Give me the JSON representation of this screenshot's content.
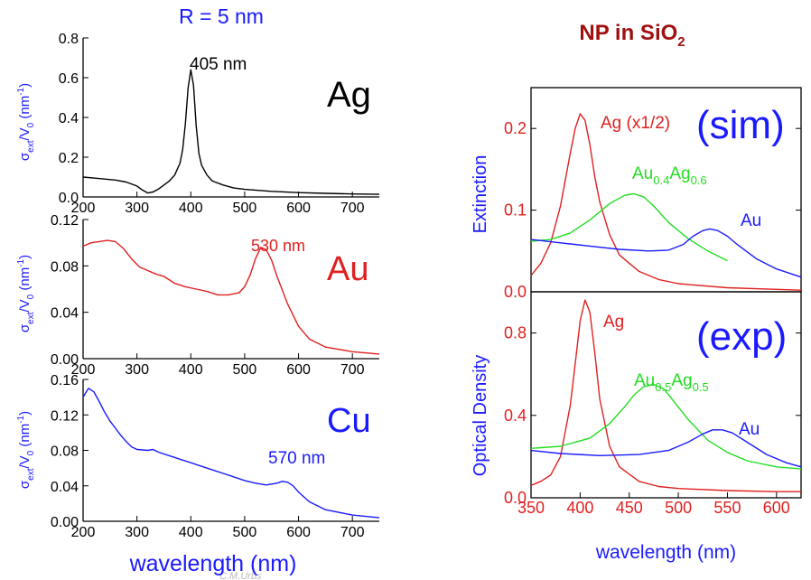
{
  "left_title": "R = 5 nm",
  "right_title": "NP in SiO",
  "right_title_sub": "2",
  "watermark": "C.M.Urbs",
  "colors": {
    "blue": "#1a1aff",
    "red": "#e02020",
    "green": "#22dd22",
    "darkred": "#a01010",
    "black": "#000000"
  },
  "chart_data": [
    {
      "type": "line",
      "id": "ag",
      "element": "Ag",
      "peak_label": "405 nm",
      "ylabel": "σext/V0 (nm-1)",
      "xlabel": "",
      "xlim": [
        200,
        750
      ],
      "ylim": [
        0,
        0.8
      ],
      "xticks": [
        "200",
        "300",
        "400",
        "500",
        "600",
        "700"
      ],
      "yticks": [
        "0.0",
        "0.2",
        "0.4",
        "0.6",
        "0.8"
      ],
      "color": "#000000",
      "series": [
        {
          "x": [
            200,
            220,
            240,
            260,
            280,
            300,
            310,
            320,
            330,
            340,
            350,
            360,
            370,
            380,
            385,
            390,
            395,
            400,
            405,
            410,
            415,
            420,
            430,
            440,
            460,
            480,
            500,
            550,
            600,
            650,
            700,
            750
          ],
          "y": [
            0.1,
            0.095,
            0.09,
            0.085,
            0.075,
            0.055,
            0.035,
            0.02,
            0.025,
            0.04,
            0.06,
            0.08,
            0.11,
            0.17,
            0.24,
            0.37,
            0.55,
            0.64,
            0.56,
            0.36,
            0.22,
            0.16,
            0.11,
            0.08,
            0.06,
            0.045,
            0.038,
            0.028,
            0.022,
            0.018,
            0.015,
            0.013
          ]
        }
      ]
    },
    {
      "type": "line",
      "id": "au",
      "element": "Au",
      "peak_label": "530 nm",
      "ylabel": "σext/V0 (nm-1)",
      "xlabel": "",
      "xlim": [
        200,
        750
      ],
      "ylim": [
        0,
        0.12
      ],
      "xticks": [
        "200",
        "300",
        "400",
        "500",
        "600",
        "700"
      ],
      "yticks": [
        "0.00",
        "0.04",
        "0.08",
        "0.12"
      ],
      "color": "#e02020",
      "series": [
        {
          "x": [
            200,
            215,
            230,
            245,
            260,
            275,
            290,
            305,
            320,
            335,
            350,
            370,
            390,
            410,
            430,
            450,
            470,
            490,
            500,
            510,
            520,
            530,
            540,
            550,
            560,
            580,
            600,
            620,
            650,
            700,
            750
          ],
          "y": [
            0.097,
            0.1,
            0.101,
            0.102,
            0.101,
            0.095,
            0.086,
            0.079,
            0.076,
            0.073,
            0.071,
            0.065,
            0.062,
            0.06,
            0.058,
            0.055,
            0.055,
            0.057,
            0.062,
            0.072,
            0.086,
            0.096,
            0.094,
            0.085,
            0.071,
            0.047,
            0.028,
            0.017,
            0.01,
            0.006,
            0.004
          ]
        }
      ]
    },
    {
      "type": "line",
      "id": "cu",
      "element": "Cu",
      "peak_label": "570 nm",
      "ylabel": "σext/V0 (nm-1)",
      "xlabel": "wavelength (nm)",
      "xlim": [
        200,
        750
      ],
      "ylim": [
        0,
        0.16
      ],
      "xticks": [
        "200",
        "300",
        "400",
        "500",
        "600",
        "700"
      ],
      "yticks": [
        "0.00",
        "0.04",
        "0.08",
        "0.12",
        "0.16"
      ],
      "color": "#1a1aff",
      "series": [
        {
          "x": [
            200,
            210,
            220,
            230,
            240,
            250,
            260,
            270,
            280,
            290,
            300,
            320,
            330,
            340,
            360,
            380,
            400,
            420,
            440,
            460,
            480,
            500,
            520,
            540,
            560,
            570,
            580,
            590,
            600,
            620,
            650,
            700,
            750
          ],
          "y": [
            0.14,
            0.15,
            0.146,
            0.135,
            0.123,
            0.113,
            0.105,
            0.097,
            0.09,
            0.084,
            0.081,
            0.08,
            0.081,
            0.078,
            0.074,
            0.07,
            0.066,
            0.062,
            0.058,
            0.054,
            0.05,
            0.046,
            0.043,
            0.041,
            0.043,
            0.045,
            0.044,
            0.04,
            0.033,
            0.022,
            0.013,
            0.007,
            0.004
          ]
        }
      ]
    },
    {
      "type": "line",
      "id": "sim",
      "panel_label": "(sim)",
      "ylabel": "Extinction",
      "xlabel": "",
      "xlim": [
        350,
        625
      ],
      "ylim": [
        0,
        0.25
      ],
      "xticks": [],
      "yticks": [
        "0.0",
        "0.1",
        "0.2"
      ],
      "series": [
        {
          "name": "Ag (x1/2)",
          "color": "#e02020",
          "x": [
            350,
            360,
            370,
            380,
            390,
            395,
            400,
            405,
            410,
            415,
            420,
            430,
            440,
            460,
            480,
            500,
            550,
            600,
            625
          ],
          "y": [
            0.02,
            0.035,
            0.06,
            0.105,
            0.17,
            0.2,
            0.218,
            0.21,
            0.18,
            0.14,
            0.11,
            0.07,
            0.045,
            0.025,
            0.015,
            0.01,
            0.005,
            0.003,
            0.002
          ]
        },
        {
          "name": "Au0.4Ag0.6",
          "label_main": "Au",
          "label_sub1": "0.4",
          "label_mid": "Ag",
          "label_sub2": "0.6",
          "color": "#22dd22",
          "x": [
            350,
            370,
            390,
            410,
            430,
            445,
            455,
            465,
            475,
            490,
            510,
            530,
            550
          ],
          "y": [
            0.062,
            0.064,
            0.072,
            0.088,
            0.108,
            0.118,
            0.12,
            0.116,
            0.105,
            0.085,
            0.065,
            0.05,
            0.038
          ]
        },
        {
          "name": "Au",
          "color": "#1a1aff",
          "x": [
            350,
            380,
            410,
            440,
            470,
            490,
            505,
            515,
            525,
            532,
            540,
            550,
            560,
            580,
            600,
            625
          ],
          "y": [
            0.064,
            0.06,
            0.056,
            0.052,
            0.05,
            0.051,
            0.058,
            0.068,
            0.075,
            0.077,
            0.075,
            0.068,
            0.058,
            0.04,
            0.028,
            0.018
          ]
        }
      ]
    },
    {
      "type": "line",
      "id": "exp",
      "panel_label": "(exp)",
      "ylabel": "Optical Density",
      "xlabel": "wavelength (nm)",
      "xlim": [
        350,
        625
      ],
      "ylim": [
        0,
        1.0
      ],
      "xticks": [
        "350",
        "400",
        "450",
        "500",
        "550",
        "600"
      ],
      "yticks": [
        "0.0",
        "0.4",
        "0.8"
      ],
      "series": [
        {
          "name": "Ag",
          "color": "#e02020",
          "x": [
            350,
            360,
            370,
            380,
            390,
            395,
            400,
            405,
            410,
            415,
            420,
            430,
            440,
            460,
            480,
            500,
            550,
            600,
            625
          ],
          "y": [
            0.06,
            0.08,
            0.11,
            0.2,
            0.45,
            0.65,
            0.86,
            0.96,
            0.9,
            0.7,
            0.48,
            0.25,
            0.15,
            0.08,
            0.055,
            0.045,
            0.035,
            0.03,
            0.03
          ]
        },
        {
          "name": "Au0.5Ag0.5",
          "label_main": "Au",
          "label_sub1": "0.5",
          "label_mid": "Ag",
          "label_sub2": "0.5",
          "color": "#22dd22",
          "x": [
            350,
            380,
            410,
            430,
            445,
            455,
            465,
            475,
            485,
            495,
            510,
            530,
            550,
            570,
            600,
            625
          ],
          "y": [
            0.24,
            0.25,
            0.29,
            0.36,
            0.44,
            0.5,
            0.54,
            0.55,
            0.53,
            0.47,
            0.38,
            0.28,
            0.22,
            0.18,
            0.15,
            0.14
          ]
        },
        {
          "name": "Au",
          "color": "#1a1aff",
          "x": [
            350,
            380,
            420,
            460,
            490,
            510,
            525,
            535,
            545,
            555,
            570,
            590,
            610,
            625
          ],
          "y": [
            0.23,
            0.215,
            0.205,
            0.21,
            0.23,
            0.27,
            0.31,
            0.33,
            0.33,
            0.315,
            0.27,
            0.21,
            0.17,
            0.15
          ]
        }
      ]
    }
  ]
}
